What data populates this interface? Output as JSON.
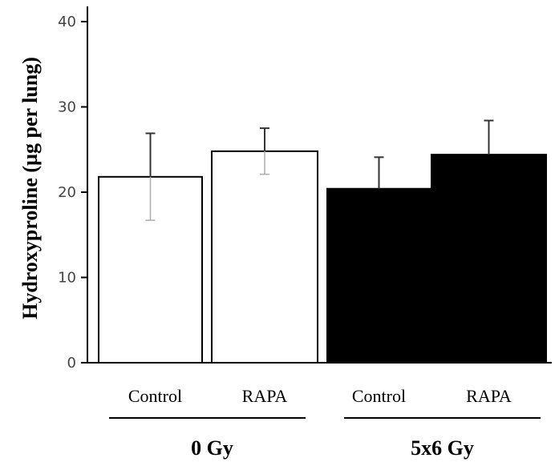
{
  "chart_data": {
    "type": "bar",
    "ylabel": "Hydroxyproline (µg per lung)",
    "ylim": [
      0,
      40
    ],
    "yticks": [
      0,
      10,
      20,
      30,
      40
    ],
    "grid": false,
    "categories": [
      "Control",
      "RAPA",
      "Control",
      "RAPA"
    ],
    "groups": [
      {
        "label": "0 Gy",
        "categories": [
          "Control",
          "RAPA"
        ]
      },
      {
        "label": "5x6 Gy",
        "categories": [
          "Control",
          "RAPA"
        ]
      }
    ],
    "series": [
      {
        "values": [
          21.8,
          24.8,
          20.4,
          24.4
        ],
        "error": [
          5.1,
          2.7,
          3.7,
          4.0
        ],
        "fill_colors": [
          "#ffffff",
          "#ffffff",
          "#000000",
          "#000000"
        ]
      }
    ]
  }
}
